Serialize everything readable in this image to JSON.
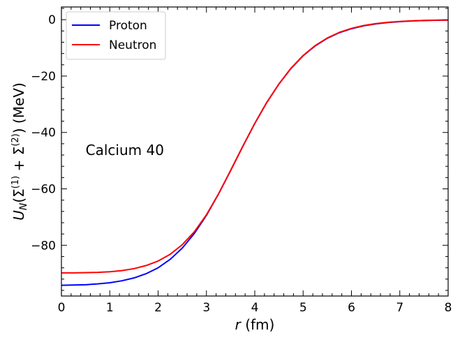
{
  "chart_data": {
    "type": "line",
    "xlabel_var": "r",
    "xlabel_unit": " (fm)",
    "ylabel": {
      "u": "U",
      "sub": "N",
      "open": "(Σ",
      "sup1": "(1)",
      "plus": " + Σ",
      "sup2": "(2)",
      "close": ") (MeV)"
    },
    "xlim": [
      0,
      8
    ],
    "ylim": [
      -98,
      4.5
    ],
    "xticks": [
      0,
      1,
      2,
      3,
      4,
      5,
      6,
      7,
      8
    ],
    "yticks": [
      0,
      -20,
      -40,
      -60,
      -80
    ],
    "xtick_labels": [
      "0",
      "1",
      "2",
      "3",
      "4",
      "5",
      "6",
      "7",
      "8"
    ],
    "ytick_labels": [
      "0",
      "−20",
      "−40",
      "−60",
      "−80"
    ],
    "annotation": {
      "text": "Calcium 40",
      "x": 0.5,
      "y": -48
    },
    "legend_position": "upper-left",
    "series": [
      {
        "name": "Proton",
        "color": "#0000ff",
        "x": [
          0,
          0.25,
          0.5,
          0.75,
          1.0,
          1.25,
          1.5,
          1.75,
          2.0,
          2.25,
          2.5,
          2.75,
          3.0,
          3.25,
          3.5,
          3.75,
          4.0,
          4.25,
          4.5,
          4.75,
          5.0,
          5.25,
          5.5,
          5.75,
          6.0,
          6.25,
          6.5,
          6.75,
          7.0,
          7.25,
          7.5,
          7.75,
          8.0
        ],
        "y": [
          -94.2,
          -94.1,
          -94.0,
          -93.7,
          -93.3,
          -92.6,
          -91.6,
          -90.1,
          -88.0,
          -85.0,
          -81.0,
          -75.8,
          -69.4,
          -61.8,
          -53.5,
          -45.0,
          -36.8,
          -29.3,
          -22.8,
          -17.3,
          -12.8,
          -9.3,
          -6.6,
          -4.6,
          -3.2,
          -2.2,
          -1.5,
          -1.0,
          -0.7,
          -0.45,
          -0.3,
          -0.2,
          -0.13
        ]
      },
      {
        "name": "Neutron",
        "color": "#ff0000",
        "x": [
          0,
          0.25,
          0.5,
          0.75,
          1.0,
          1.25,
          1.5,
          1.75,
          2.0,
          2.25,
          2.5,
          2.75,
          3.0,
          3.25,
          3.5,
          3.75,
          4.0,
          4.25,
          4.5,
          4.75,
          5.0,
          5.25,
          5.5,
          5.75,
          6.0,
          6.25,
          6.5,
          6.75,
          7.0,
          7.25,
          7.5,
          7.75,
          8.0
        ],
        "y": [
          -89.8,
          -89.8,
          -89.7,
          -89.6,
          -89.4,
          -89.0,
          -88.3,
          -87.2,
          -85.6,
          -83.2,
          -79.8,
          -75.2,
          -69.2,
          -61.8,
          -53.5,
          -45.0,
          -36.8,
          -29.3,
          -22.8,
          -17.2,
          -12.7,
          -9.2,
          -6.5,
          -4.5,
          -3.1,
          -2.1,
          -1.4,
          -0.95,
          -0.65,
          -0.43,
          -0.28,
          -0.18,
          -0.12
        ]
      }
    ]
  }
}
